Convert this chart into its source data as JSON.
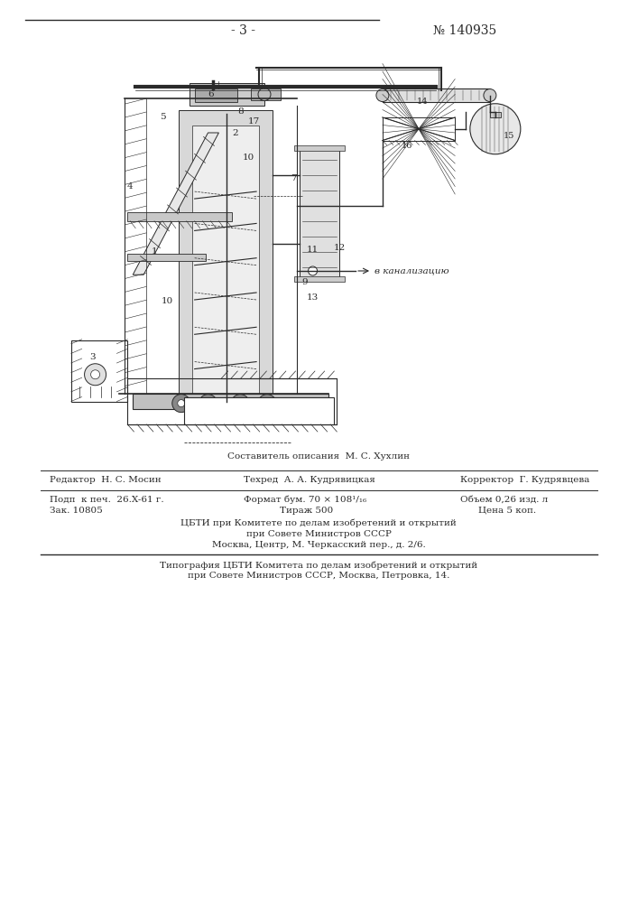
{
  "page_number": "- 3 -",
  "patent_number": "№ 140935",
  "bg_color": "#ffffff",
  "line_color": "#2a2a2a",
  "footer": {
    "compiler": "Составитель описания  М. С. Хухлин",
    "editor": "Редактор  Н. С. Мосин",
    "techred": "Техред  А. А. Кудрявицкая",
    "corrector": "Корректор  Г. Кудрявцева",
    "podp": "Подп  к печ.  26.X-61 г.",
    "zak": "Зак. 10805",
    "format": "Формат бум. 70 × 108¹/₁₆",
    "tirazh": "Тираж 500",
    "obem": "Объем 0,26 изд. л",
    "cena": "Цена 5 коп.",
    "cbti1": "ЦБТИ при Комитете по делам изобретений и открытий",
    "cbti2": "при Совете Министров СССР",
    "cbti3": "Москва, Центр, М. Черкасский пер., д. 2/6.",
    "tip1": "Типография ЦБТИ Комитета по делам изобретений и открытий",
    "tip2": "при Совете Министров СССР, Москва, Петровка, 14."
  }
}
